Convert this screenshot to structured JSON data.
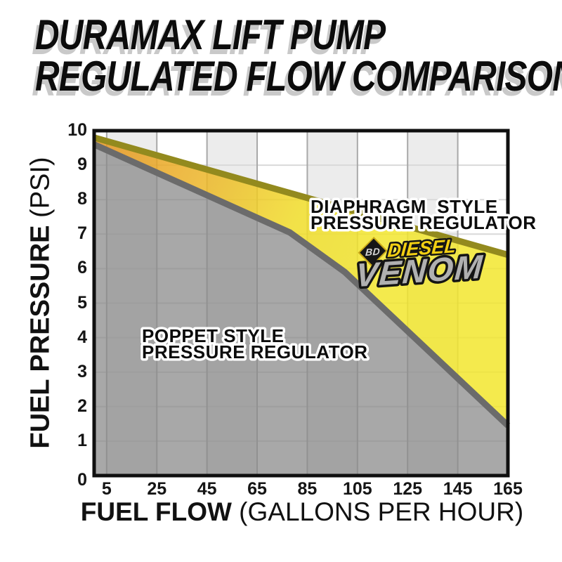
{
  "title": {
    "line1": "DURAMAX LIFT PUMP",
    "line2": "REGULATED FLOW COMPARISON"
  },
  "axes": {
    "y": {
      "title_bold": "FUEL PRESSURE",
      "title_light": " (PSI)",
      "ticks": [
        "10",
        "9",
        "8",
        "7",
        "6",
        "5",
        "4",
        "3",
        "2",
        "1",
        "0"
      ]
    },
    "x": {
      "title_bold": "FUEL FLOW",
      "title_light": " (GALLONS PER HOUR)",
      "ticks": [
        "5",
        "25",
        "45",
        "65",
        "85",
        "105",
        "125",
        "145",
        "165"
      ]
    }
  },
  "labels": {
    "diaphragm_line1": "DIAPHRAGM  STYLE",
    "diaphragm_line2": "PRESSURE REGULATOR",
    "poppet_line1": "POPPET STYLE",
    "poppet_line2": "PRESSURE REGULATOR"
  },
  "logo": {
    "bd": "BD",
    "diesel": "DIESEL",
    "venom": "VENOM"
  },
  "colors": {
    "background": "#ffffff",
    "band": "#ececec",
    "grid_vertical": "#a8a8a8",
    "grid_horizontal": "#d9d9d9",
    "plot_border": "#0f0f0f",
    "diaphragm_line": "#938a1e",
    "diaphragm_fill_left": "#e5941e",
    "diaphragm_fill_right": "#f2e62e",
    "poppet_line": "#6b6b6b",
    "poppet_fill": "#8a8a8a",
    "title_shadow": "#c9c9c9",
    "logo_yellow": "#f2cf12",
    "logo_gray": "#b0b0b0"
  },
  "chart_data": {
    "type": "area",
    "title": "Duramax Lift Pump Regulated Flow Comparison",
    "xlabel": "Fuel Flow (Gallons per Hour)",
    "ylabel": "Fuel Pressure (PSI)",
    "x": [
      5,
      25,
      45,
      65,
      85,
      105,
      125,
      145,
      165
    ],
    "series": [
      {
        "name": "Diaphragm Style Pressure Regulator",
        "line_color": "#938a1e",
        "values": [
          9.7,
          9.3,
          8.9,
          8.5,
          8.1,
          7.6,
          7.2,
          6.8,
          6.4
        ]
      },
      {
        "name": "Poppet Style Pressure Regulator",
        "line_color": "#6b6b6b",
        "values": [
          9.4,
          8.8,
          8.1,
          7.5,
          6.7,
          5.6,
          4.2,
          2.8,
          1.5
        ]
      }
    ],
    "diaphragm_anchor_points": [
      [
        0,
        9.8
      ],
      [
        85,
        8.05
      ],
      [
        165,
        6.4
      ]
    ],
    "poppet_anchor_points": [
      [
        0,
        9.6
      ],
      [
        78,
        7.05
      ],
      [
        100,
        5.9
      ],
      [
        165,
        1.45
      ]
    ],
    "xlim": [
      0,
      165
    ],
    "ylim": [
      0,
      10
    ],
    "grid": true,
    "band_pairs_shaded": [
      [
        5,
        25
      ],
      [
        45,
        65
      ],
      [
        85,
        105
      ],
      [
        125,
        145
      ]
    ],
    "legend": "inline-labels"
  }
}
